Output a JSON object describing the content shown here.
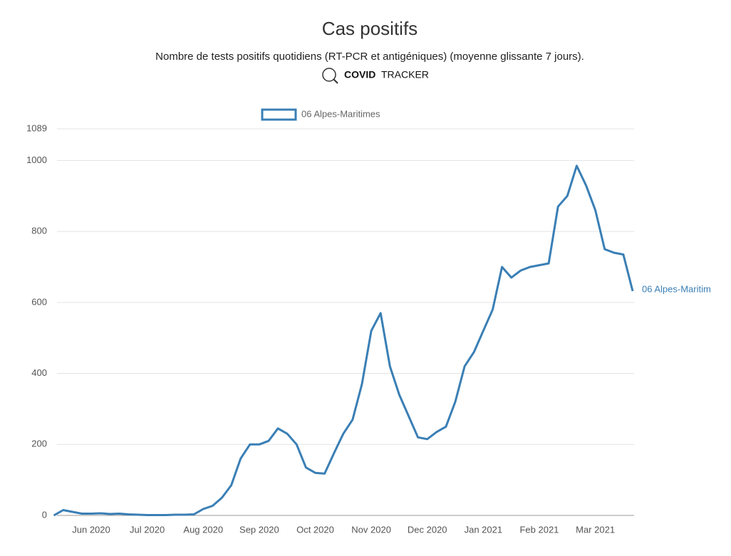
{
  "chart_data": {
    "type": "line",
    "title": "Cas positifs",
    "subtitle": "Nombre de tests positifs quotidiens (RT-PCR et antigéniques) (moyenne glissante 7 jours).",
    "brand_bold": "COVID",
    "brand": "TRACKER",
    "categories": [
      null,
      null,
      null,
      null,
      "Jun 2020",
      null,
      null,
      null,
      null,
      null,
      "Jul 2020",
      null,
      null,
      null,
      null,
      null,
      "Aug 2020",
      null,
      null,
      null,
      null,
      null,
      "Sep 2020",
      null,
      null,
      null,
      null,
      null,
      "Oct 2020",
      null,
      null,
      null,
      null,
      null,
      "Nov 2020",
      null,
      null,
      null,
      null,
      null,
      "Dec 2020",
      null,
      null,
      null,
      null,
      null,
      "Jan 2021",
      null,
      null,
      null,
      null,
      null,
      "Feb 2021",
      null,
      null,
      null,
      null,
      null,
      "Mar 2021",
      null,
      null,
      null,
      null
    ],
    "series": [
      {
        "name": "06 Alpes-Maritimes",
        "color": "#3a7fb5",
        "values": [
          0,
          15,
          10,
          5,
          5,
          6,
          4,
          5,
          3,
          2,
          1,
          1,
          1,
          2,
          2,
          3,
          18,
          27,
          50,
          85,
          160,
          200,
          200,
          210,
          245,
          230,
          200,
          135,
          120,
          118,
          175,
          230,
          270,
          370,
          520,
          570,
          420,
          340,
          280,
          220,
          215,
          235,
          250,
          320,
          420,
          460,
          520,
          580,
          700,
          670,
          690,
          700,
          705,
          710,
          870,
          900,
          985,
          930,
          860,
          750,
          740,
          735,
          632
        ]
      }
    ],
    "end_label": "06 Alpes-Maritim",
    "ylim": [
      0,
      1089
    ],
    "yticks": [
      0,
      200,
      400,
      600,
      800,
      1000,
      1089
    ],
    "grid": true
  }
}
